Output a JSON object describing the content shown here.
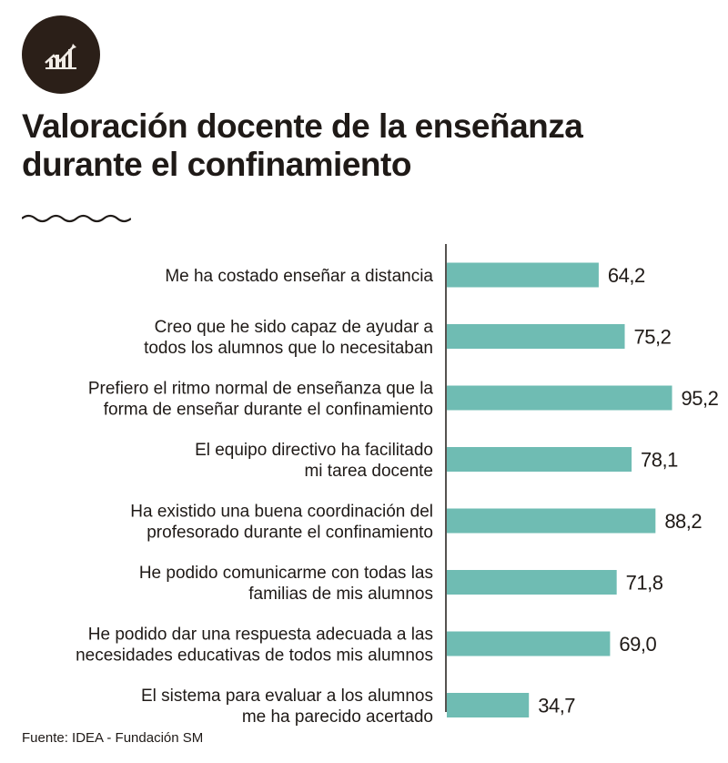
{
  "header": {
    "icon": "chart-trend-icon",
    "title_line1": "Valoración docente de la enseñanza",
    "title_line2": "durante el confinamiento"
  },
  "source": "Fuente: IDEA - Fundación SM",
  "colors": {
    "bar": "#6fbcb3",
    "text": "#1f1a17",
    "logo_bg": "#2b1f18",
    "axis": "#1f1a17"
  },
  "chart_data": {
    "type": "bar",
    "orientation": "horizontal",
    "title": "Valoración docente de la enseñanza durante el confinamiento",
    "xlabel": "",
    "ylabel": "",
    "xlim": [
      0,
      100
    ],
    "grid": false,
    "categories": [
      [
        "Me ha costado enseñar a distancia"
      ],
      [
        "Creo que he sido capaz de ayudar a",
        "todos los alumnos que lo necesitaban"
      ],
      [
        "Prefiero el ritmo normal de enseñanza que la",
        "forma de enseñar durante el confinamiento"
      ],
      [
        "El equipo directivo ha facilitado",
        "mi tarea docente"
      ],
      [
        "Ha existido una buena coordinación del",
        "profesorado durante el confinamiento"
      ],
      [
        "He podido comunicarme con todas las",
        "familias de mis alumnos"
      ],
      [
        "He podido dar una respuesta adecuada a las",
        "necesidades educativas de todos mis alumnos"
      ],
      [
        "El sistema para evaluar a los alumnos",
        "me ha parecido acertado"
      ]
    ],
    "values": [
      64.2,
      75.2,
      95.2,
      78.1,
      88.2,
      71.8,
      69.0,
      34.7
    ],
    "value_labels": [
      "64,2",
      "75,2",
      "95,2",
      "78,1",
      "88,2",
      "71,8",
      "69,0",
      "34,7"
    ]
  }
}
